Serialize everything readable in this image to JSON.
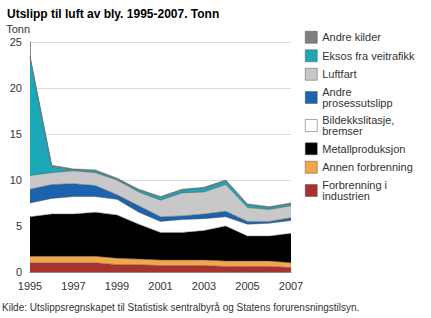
{
  "chart_data": {
    "type": "area",
    "title": "Utslipp til luft av bly. 1995-2007. Tonn",
    "y_label": "Tonn",
    "source": "Kilde: Utslippsregnskapet til Statistisk sentralbyrå og Statens forurensningstilsyn.",
    "categories": [
      "1995",
      null,
      "1997",
      null,
      "1999",
      null,
      "2001",
      null,
      "2003",
      null,
      "2005",
      null,
      "2007"
    ],
    "stacked": true,
    "grid": true,
    "legend": "right",
    "ylim": [
      0,
      25
    ],
    "yticks": [
      0,
      5,
      10,
      15,
      20,
      25
    ],
    "series": [
      {
        "name": "Forbrenning i industrien",
        "color": "#a8322d",
        "values": [
          1.0,
          1.0,
          1.0,
          1.0,
          0.8,
          0.8,
          0.7,
          0.7,
          0.7,
          0.6,
          0.6,
          0.6,
          0.5
        ]
      },
      {
        "name": "Annen forbrenning",
        "color": "#f5a54a",
        "values": [
          0.7,
          0.7,
          0.7,
          0.7,
          0.7,
          0.6,
          0.6,
          0.6,
          0.6,
          0.6,
          0.6,
          0.6,
          0.5
        ]
      },
      {
        "name": "Metallproduksjon",
        "color": "#000000",
        "values": [
          4.3,
          4.6,
          4.6,
          4.8,
          4.7,
          3.8,
          3.0,
          3.0,
          3.2,
          3.8,
          2.7,
          2.7,
          3.2
        ]
      },
      {
        "name": "Bildekkslitasje, bremser",
        "color": "#ffffff",
        "values": [
          1.5,
          1.7,
          1.9,
          1.7,
          1.7,
          1.3,
          1.2,
          1.4,
          1.3,
          1.0,
          1.3,
          1.4,
          1.4
        ]
      },
      {
        "name": "Andre prosessutslipp",
        "color": "#1b63b0",
        "values": [
          1.5,
          1.5,
          1.4,
          1.2,
          0.5,
          0.7,
          0.5,
          0.4,
          0.5,
          0.6,
          0.3,
          0.2,
          0.3
        ]
      },
      {
        "name": "Luftfart",
        "color": "#c8c8c8",
        "values": [
          1.5,
          1.3,
          1.4,
          1.4,
          1.6,
          1.5,
          1.8,
          2.5,
          2.4,
          2.9,
          1.5,
          1.3,
          1.3
        ]
      },
      {
        "name": "Eksos fra veitrafikk",
        "color": "#1ba7b8",
        "values": [
          12.8,
          0.6,
          0.1,
          0.2,
          0.1,
          0.2,
          0.3,
          0.3,
          0.4,
          0.4,
          0.3,
          0.2,
          0.2
        ]
      },
      {
        "name": "Andre kilder",
        "color": "#7f7f7f",
        "values": [
          0.2,
          0.2,
          0.1,
          0.1,
          0.1,
          0.1,
          0.1,
          0.1,
          0.1,
          0.1,
          0.1,
          0.1,
          0.1
        ]
      }
    ]
  }
}
